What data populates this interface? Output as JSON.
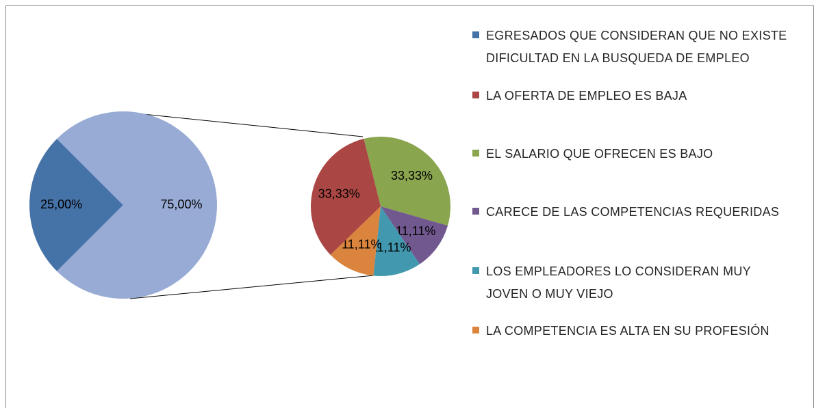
{
  "chart_data": {
    "type": "pie",
    "categories": [
      "EGRESADOS QUE CONSIDERAN QUE NO EXISTE DIFICULTAD EN LA BUSQUEDA DE EMPLEO",
      "LA OFERTA DE EMPLEO ES BAJA",
      "EL SALARIO QUE OFRECEN ES BAJO",
      "CARECE DE LAS COMPETENCIAS REQUERIDAS",
      "LOS EMPLEADORES LO CONSIDERAN MUY JOVEN O MUY VIEJO",
      "LA COMPETENCIA ES ALTA EN SU PROFESIÓN"
    ],
    "values": [
      25,
      33.33,
      33.33,
      11.11,
      11.11,
      11.11
    ],
    "value_labels": [
      "25,00%",
      "33,33%",
      "33,33%",
      "11,11%",
      "11,11%",
      "11,11%"
    ],
    "colors": [
      "#4572a7",
      "#aa4643",
      "#89a54e",
      "#71588f",
      "#4198af",
      "#db843d"
    ],
    "other": {
      "value": 75,
      "value_label": "75,00%",
      "color": "#98abd5"
    }
  }
}
